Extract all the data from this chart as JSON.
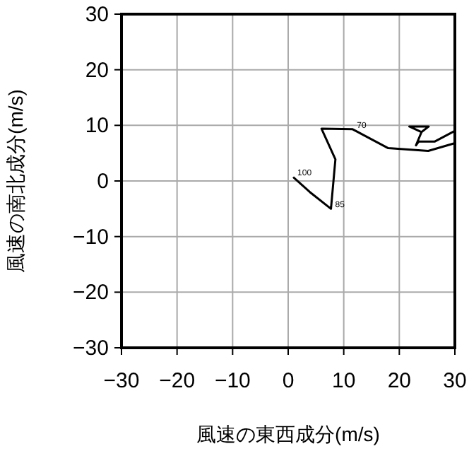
{
  "chart_data": {
    "type": "line",
    "xlabel": "風速の東西成分(m/s)",
    "ylabel": "風速の南北成分(m/s)",
    "xlim": [
      -30,
      30
    ],
    "ylim": [
      -30,
      30
    ],
    "xticks": [
      -30,
      -20,
      -10,
      0,
      10,
      20,
      30
    ],
    "yticks": [
      -30,
      -20,
      -10,
      0,
      10,
      20,
      30
    ],
    "grid": true,
    "marker": "none",
    "line_style": "solid",
    "series": [
      {
        "color": "#000000",
        "x": [
          0.9,
          3.9,
          7.7,
          8.5,
          6.0,
          11.6,
          18.0,
          25.2,
          30,
          30,
          26.4,
          23.5,
          23,
          24,
          21.8,
          25.3,
          24
        ],
        "values": [
          0.7,
          -2,
          -5,
          3.9,
          9.4,
          9.3,
          5.9,
          5.4,
          6.8,
          9,
          7.1,
          7.1,
          6.4,
          8.8,
          9.8,
          9.8,
          8.8
        ]
      }
    ],
    "annotations": [
      {
        "text": "100",
        "x": 0.9,
        "y": 0.7
      },
      {
        "text": "85",
        "x": 7.7,
        "y": -5
      },
      {
        "text": "70",
        "x": 11.6,
        "y": 9.3
      }
    ]
  }
}
